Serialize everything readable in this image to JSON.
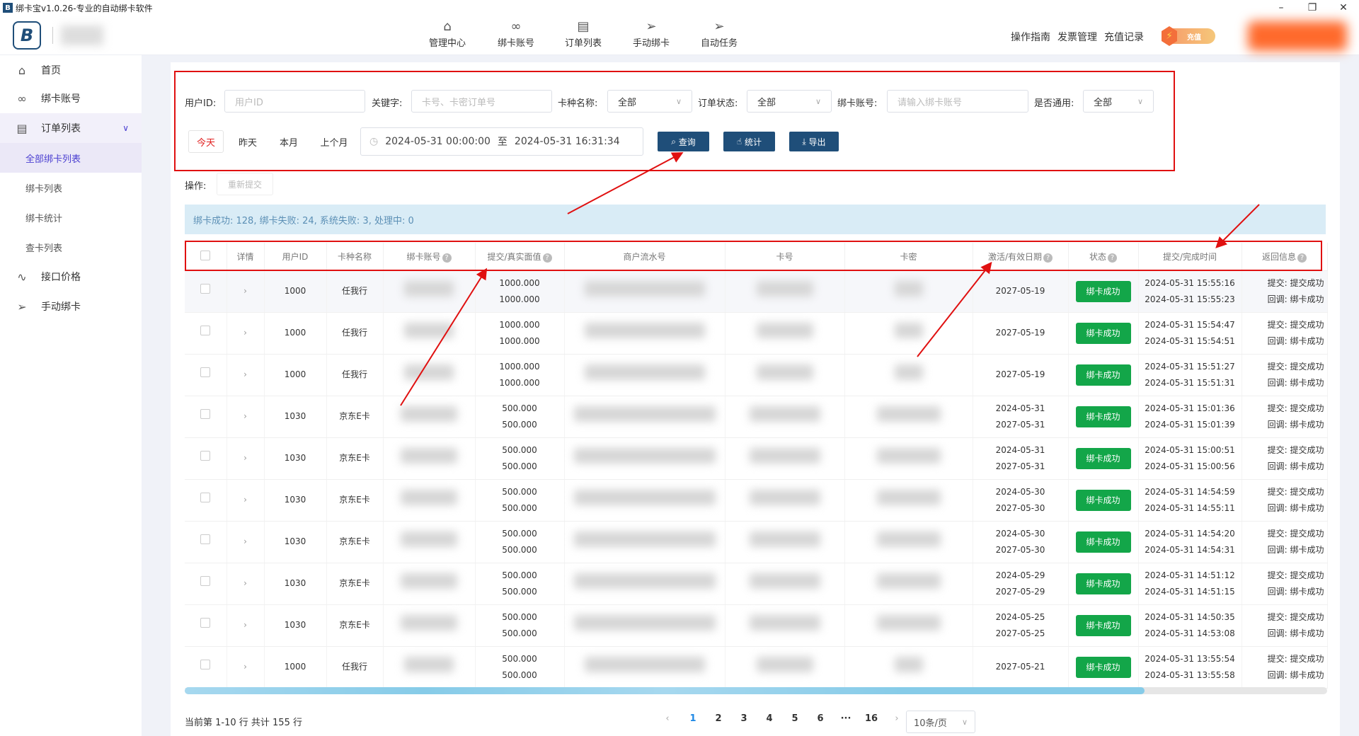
{
  "window": {
    "title": "绑卡宝v1.0.26-专业的自动绑卡软件",
    "minimize": "–",
    "restore": "❐",
    "close": "✕"
  },
  "logo": {
    "text": "B"
  },
  "topnav": [
    {
      "label": "管理中心",
      "icon": "home-icon"
    },
    {
      "label": "绑卡账号",
      "icon": "link-icon"
    },
    {
      "label": "订单列表",
      "icon": "document-icon"
    },
    {
      "label": "手动绑卡",
      "icon": "send-icon"
    },
    {
      "label": "自动任务",
      "icon": "send-icon"
    }
  ],
  "header_links": [
    "操作指南",
    "发票管理",
    "充值记录"
  ],
  "charge_label": "充值",
  "sidebar": {
    "items": [
      {
        "label": "首页",
        "icon": "home-icon"
      },
      {
        "label": "绑卡账号",
        "icon": "link-icon"
      },
      {
        "label": "订单列表",
        "icon": "document-icon"
      },
      {
        "label": "全部绑卡列表"
      },
      {
        "label": "绑卡列表"
      },
      {
        "label": "绑卡统计"
      },
      {
        "label": "查卡列表"
      },
      {
        "label": "接口价格",
        "icon": "pulse-icon"
      },
      {
        "label": "手动绑卡",
        "icon": "send-icon"
      }
    ]
  },
  "filters": {
    "user_id": {
      "label": "用户ID:",
      "placeholder": "用户ID"
    },
    "keyword": {
      "label": "关键字:",
      "placeholder": "卡号、卡密订单号"
    },
    "card_type": {
      "label": "卡种名称:",
      "value": "全部"
    },
    "order_status": {
      "label": "订单状态:",
      "value": "全部"
    },
    "bind_account": {
      "label": "绑卡账号:",
      "placeholder": "请输入绑卡账号"
    },
    "is_general": {
      "label": "是否通用:",
      "value": "全部"
    },
    "quick": [
      "今天",
      "昨天",
      "本月",
      "上个月"
    ],
    "date_start": "2024-05-31 00:00:00",
    "date_sep": "至",
    "date_end": "2024-05-31 16:31:34",
    "query": "查询",
    "stats": "统计",
    "export": "导出"
  },
  "ops": {
    "label": "操作:",
    "resubmit": "重新提交"
  },
  "summary": "绑卡成功: 128,  绑卡失败: 24,  系统失败: 3,  处理中: 0",
  "table": {
    "headers": [
      "",
      "详情",
      "用户ID",
      "卡种名称",
      "绑卡账号",
      "提交/真实面值",
      "商户流水号",
      "卡号",
      "卡密",
      "激活/有效日期",
      "状态",
      "提交/完成时间",
      "返回信息"
    ],
    "help_columns": [
      4,
      5,
      9,
      10,
      12
    ],
    "rows": [
      {
        "user": "1000",
        "type": "任我行",
        "face": [
          "1000.000",
          "1000.000"
        ],
        "dates": [
          "2027-05-19"
        ],
        "status": "绑卡成功",
        "times": [
          "2024-05-31 15:55:16",
          "2024-05-31 15:55:23"
        ],
        "ret": [
          "提交: 提交成功",
          "回调: 绑卡成功"
        ]
      },
      {
        "user": "1000",
        "type": "任我行",
        "face": [
          "1000.000",
          "1000.000"
        ],
        "dates": [
          "2027-05-19"
        ],
        "status": "绑卡成功",
        "times": [
          "2024-05-31 15:54:47",
          "2024-05-31 15:54:51"
        ],
        "ret": [
          "提交: 提交成功",
          "回调: 绑卡成功"
        ]
      },
      {
        "user": "1000",
        "type": "任我行",
        "face": [
          "1000.000",
          "1000.000"
        ],
        "dates": [
          "2027-05-19"
        ],
        "status": "绑卡成功",
        "times": [
          "2024-05-31 15:51:27",
          "2024-05-31 15:51:31"
        ],
        "ret": [
          "提交: 提交成功",
          "回调: 绑卡成功"
        ]
      },
      {
        "user": "1030",
        "type": "京东E卡",
        "face": [
          "500.000",
          "500.000"
        ],
        "dates": [
          "2024-05-31",
          "2027-05-31"
        ],
        "status": "绑卡成功",
        "times": [
          "2024-05-31 15:01:36",
          "2024-05-31 15:01:39"
        ],
        "ret": [
          "提交: 提交成功",
          "回调: 绑卡成功"
        ]
      },
      {
        "user": "1030",
        "type": "京东E卡",
        "face": [
          "500.000",
          "500.000"
        ],
        "dates": [
          "2024-05-31",
          "2027-05-31"
        ],
        "status": "绑卡成功",
        "times": [
          "2024-05-31 15:00:51",
          "2024-05-31 15:00:56"
        ],
        "ret": [
          "提交: 提交成功",
          "回调: 绑卡成功"
        ]
      },
      {
        "user": "1030",
        "type": "京东E卡",
        "face": [
          "500.000",
          "500.000"
        ],
        "dates": [
          "2024-05-30",
          "2027-05-30"
        ],
        "status": "绑卡成功",
        "times": [
          "2024-05-31 14:54:59",
          "2024-05-31 14:55:11"
        ],
        "ret": [
          "提交: 提交成功",
          "回调: 绑卡成功"
        ]
      },
      {
        "user": "1030",
        "type": "京东E卡",
        "face": [
          "500.000",
          "500.000"
        ],
        "dates": [
          "2024-05-30",
          "2027-05-30"
        ],
        "status": "绑卡成功",
        "times": [
          "2024-05-31 14:54:20",
          "2024-05-31 14:54:31"
        ],
        "ret": [
          "提交: 提交成功",
          "回调: 绑卡成功"
        ]
      },
      {
        "user": "1030",
        "type": "京东E卡",
        "face": [
          "500.000",
          "500.000"
        ],
        "dates": [
          "2024-05-29",
          "2027-05-29"
        ],
        "status": "绑卡成功",
        "times": [
          "2024-05-31 14:51:12",
          "2024-05-31 14:51:15"
        ],
        "ret": [
          "提交: 提交成功",
          "回调: 绑卡成功"
        ]
      },
      {
        "user": "1030",
        "type": "京东E卡",
        "face": [
          "500.000",
          "500.000"
        ],
        "dates": [
          "2024-05-25",
          "2027-05-25"
        ],
        "status": "绑卡成功",
        "times": [
          "2024-05-31 14:50:35",
          "2024-05-31 14:53:08"
        ],
        "ret": [
          "提交: 提交成功",
          "回调: 绑卡成功"
        ]
      },
      {
        "user": "1000",
        "type": "任我行",
        "face": [
          "500.000",
          "500.000"
        ],
        "dates": [
          "2027-05-21"
        ],
        "status": "绑卡成功",
        "times": [
          "2024-05-31 13:55:54",
          "2024-05-31 13:55:58"
        ],
        "ret": [
          "提交: 提交成功",
          "回调: 绑卡成功"
        ]
      }
    ]
  },
  "scroll_position_pct": 84,
  "pagination": {
    "info": "当前第 1-10 行  共计 155 行",
    "pages": [
      "1",
      "2",
      "3",
      "4",
      "5",
      "6",
      "···",
      "16"
    ],
    "current": "1",
    "page_size": "10条/页"
  },
  "colors": {
    "primary_button": "#1f4e79",
    "success": "#13a649",
    "annotation": "#e01010",
    "active_menu": "#4b3fd1"
  }
}
